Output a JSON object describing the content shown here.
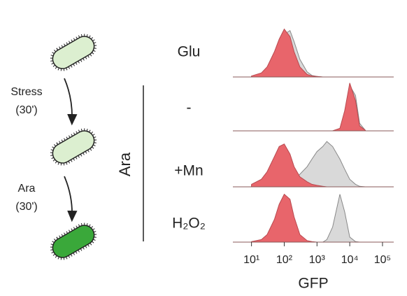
{
  "diagram": {
    "step1_label": "Stress",
    "step1_time": "(30')",
    "step2_label": "Ara",
    "step2_time": "(30')",
    "group_label": "Ara"
  },
  "chart_data": [
    {
      "type": "density",
      "label": "Glu",
      "log_x": true,
      "xlim": [
        2.7,
        220000
      ],
      "ylim": [
        0,
        1
      ],
      "x": [
        10,
        20,
        30,
        50,
        70,
        100,
        150,
        200,
        300,
        500,
        700,
        1000,
        1500,
        2000,
        3000,
        5000,
        7000,
        10000,
        15000,
        20000,
        30000
      ],
      "series": [
        {
          "color": "#d9d9d9",
          "values": [
            0.01,
            0.05,
            0.15,
            0.4,
            0.65,
            0.85,
            0.92,
            0.7,
            0.35,
            0.1,
            0.03,
            0.01,
            0,
            0,
            0,
            0,
            0,
            0,
            0,
            0,
            0
          ]
        },
        {
          "color": "#e8656b",
          "values": [
            0.02,
            0.08,
            0.2,
            0.5,
            0.75,
            0.95,
            0.8,
            0.5,
            0.2,
            0.05,
            0.02,
            0.01,
            0,
            0,
            0,
            0,
            0,
            0,
            0,
            0,
            0
          ]
        }
      ]
    },
    {
      "type": "density",
      "label": "-",
      "log_x": true,
      "xlim": [
        2.7,
        220000
      ],
      "ylim": [
        0,
        1
      ],
      "x": [
        10,
        20,
        30,
        50,
        70,
        100,
        150,
        200,
        300,
        500,
        700,
        1000,
        1500,
        2000,
        3000,
        5000,
        7000,
        10000,
        15000,
        20000,
        30000
      ],
      "series": [
        {
          "color": "#d9d9d9",
          "values": [
            0,
            0,
            0,
            0,
            0,
            0,
            0,
            0,
            0,
            0,
            0,
            0,
            0,
            0,
            0,
            0.04,
            0.35,
            0.9,
            0.7,
            0.15,
            0.01
          ]
        },
        {
          "color": "#e8656b",
          "values": [
            0,
            0,
            0,
            0,
            0,
            0,
            0,
            0,
            0,
            0,
            0,
            0,
            0,
            0,
            0,
            0.05,
            0.4,
            0.95,
            0.6,
            0.1,
            0.01
          ]
        }
      ]
    },
    {
      "type": "density",
      "label": "+Mn",
      "log_x": true,
      "xlim": [
        2.7,
        220000
      ],
      "ylim": [
        0,
        1
      ],
      "x": [
        10,
        20,
        30,
        50,
        70,
        100,
        150,
        200,
        300,
        500,
        700,
        1000,
        1500,
        2000,
        3000,
        5000,
        7000,
        10000,
        15000,
        20000,
        30000
      ],
      "series": [
        {
          "color": "#d9d9d9",
          "values": [
            0.02,
            0.03,
            0.04,
            0.06,
            0.08,
            0.1,
            0.12,
            0.15,
            0.25,
            0.4,
            0.55,
            0.7,
            0.8,
            0.9,
            0.8,
            0.55,
            0.35,
            0.15,
            0.05,
            0.01,
            0
          ]
        },
        {
          "color": "#e8656b",
          "values": [
            0.05,
            0.15,
            0.3,
            0.6,
            0.8,
            0.85,
            0.65,
            0.4,
            0.2,
            0.1,
            0.05,
            0.03,
            0.01,
            0,
            0,
            0,
            0,
            0,
            0,
            0,
            0
          ]
        }
      ]
    },
    {
      "type": "density",
      "label": "H₂O₂",
      "log_x": true,
      "xlim": [
        2.7,
        220000
      ],
      "ylim": [
        0,
        1
      ],
      "xlabel": "GFP",
      "xticks": [
        {
          "value": 10,
          "label": "10¹"
        },
        {
          "value": 100,
          "label": "10²"
        },
        {
          "value": 1000,
          "label": "10³"
        },
        {
          "value": 10000,
          "label": "10⁴"
        },
        {
          "value": 100000,
          "label": "10⁵"
        }
      ],
      "x": [
        10,
        20,
        30,
        50,
        70,
        100,
        150,
        200,
        300,
        500,
        700,
        1000,
        1500,
        2000,
        3000,
        5000,
        7000,
        10000,
        15000,
        20000,
        30000
      ],
      "series": [
        {
          "color": "#d9d9d9",
          "values": [
            0,
            0,
            0,
            0,
            0,
            0,
            0,
            0,
            0,
            0,
            0,
            0,
            0,
            0.05,
            0.3,
            0.95,
            0.6,
            0.1,
            0.01,
            0,
            0
          ]
        },
        {
          "color": "#e8656b",
          "values": [
            0.01,
            0.05,
            0.15,
            0.45,
            0.75,
            0.95,
            0.85,
            0.5,
            0.15,
            0.03,
            0.01,
            0,
            0,
            0,
            0,
            0,
            0,
            0,
            0,
            0,
            0
          ]
        }
      ]
    }
  ]
}
